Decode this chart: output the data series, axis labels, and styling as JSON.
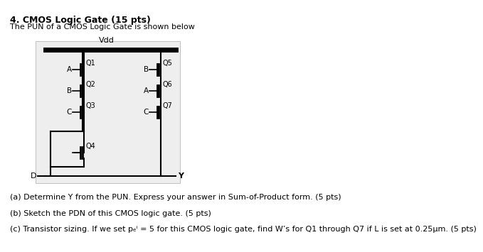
{
  "title": "4. CMOS Logic Gate (15 pts)",
  "subtitle": "The PUN of a CMOS Logic Gate is shown below",
  "vdd_label": "Vdd",
  "D_label": "D",
  "Y_label": "Y",
  "question_a": "(a) Determine Y from the PUN. Express your answer in Sum-of-Product form. (5 pts)",
  "question_b": "(b) Sketch the PDN of this CMOS logic gate. (5 pts)",
  "question_c": "(c) Transistor sizing. If we set pₑⁱ = 5 for this CMOS logic gate, find W’s for Q1 through Q7 if L is set at 0.25μm. (5 pts)",
  "bg_color": "#f0f0f0",
  "circuit_bg": "#e8e8e8",
  "text_color": "#000000",
  "font_size_title": 9,
  "font_size_body": 8
}
